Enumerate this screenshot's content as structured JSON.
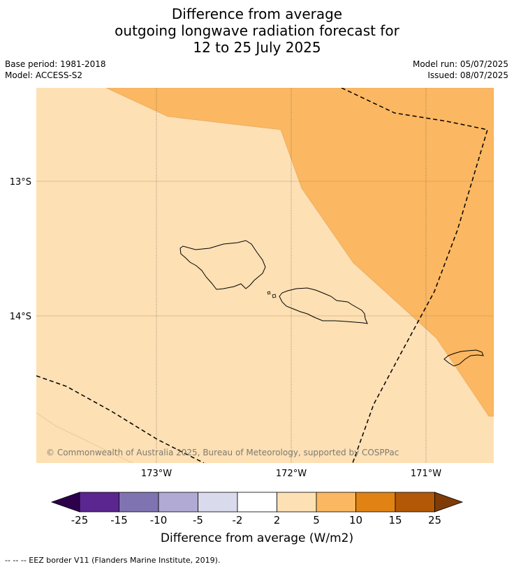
{
  "title": {
    "line1": "Difference from average",
    "line2": "outgoing longwave radiation forecast for",
    "line3": "12 to 25 July 2025"
  },
  "meta": {
    "base_period": "Base period: 1981-2018",
    "model": "Model: ACCESS-S2",
    "model_run": "Model run: 05/07/2025",
    "issued": "Issued: 08/07/2025"
  },
  "map": {
    "lat_labels": [
      "13°S",
      "14°S"
    ],
    "lon_labels": [
      "173°W",
      "172°W",
      "171°W"
    ],
    "copyright": "© Commonwealth of Australia 2025, Bureau of Meteorology, supported by COSPPac",
    "regions": [
      {
        "category": "2 to 5",
        "color": "#fde0b4"
      },
      {
        "category": "5 to 10",
        "color": "#fbb761"
      }
    ]
  },
  "colorbar": {
    "ticks": [
      "-25",
      "-15",
      "-10",
      "-5",
      "-2",
      "2",
      "5",
      "10",
      "15",
      "25"
    ],
    "colors": [
      "#5b2690",
      "#8073b1",
      "#b1aad4",
      "#d9daec",
      "#ffffff",
      "#fde0b4",
      "#fbb761",
      "#e08214",
      "#b35806"
    ],
    "under_color": "#2d004b",
    "over_color": "#7f3b08",
    "label": "Difference from average (W/m2)"
  },
  "footer": {
    "legend": "--  --  -- EEZ border V11 (Flanders Marine Institute, 2019)."
  }
}
